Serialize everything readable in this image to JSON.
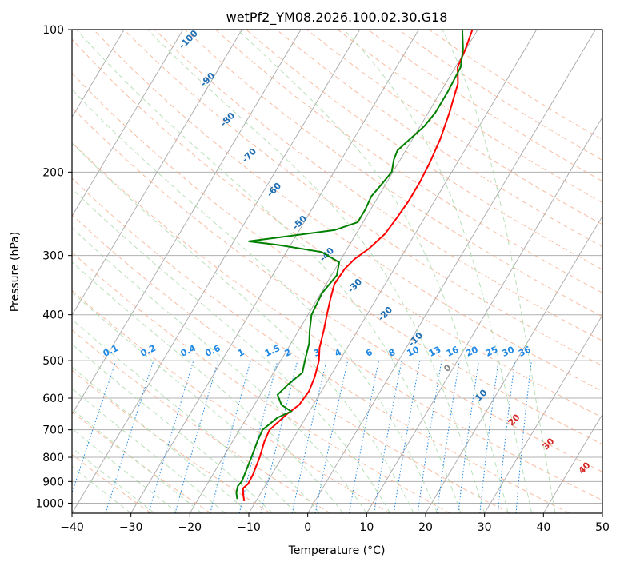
{
  "chart_data": {
    "type": "line",
    "subtype": "skew-T log-p diagram",
    "title": "wetPf2_YM08.2026.100.02.30.G18",
    "xlabel": "Temperature (°C)",
    "ylabel": "Pressure (hPa)",
    "xlim": [
      -40,
      50
    ],
    "ylim": [
      1050,
      100
    ],
    "y_scale": "log",
    "x_ticks": [
      -40,
      -30,
      -20,
      -10,
      0,
      10,
      20,
      30,
      40,
      50
    ],
    "y_ticks": [
      100,
      200,
      300,
      400,
      500,
      600,
      700,
      800,
      900,
      1000
    ],
    "grid": true,
    "background_lines": {
      "isotherms_skewed": {
        "color": "#999999",
        "style": "solid"
      },
      "dry_adiabats": {
        "color": "#f4a582",
        "style": "dashed",
        "labels": [
          "-100",
          "-90",
          "-80",
          "-70",
          "-60",
          "-50",
          "-40",
          "-30",
          "-20",
          "-10",
          "0",
          "10",
          "20",
          "30",
          "40"
        ]
      },
      "moist_adiabats": {
        "color": "#a6d8a6",
        "style": "dashed"
      },
      "mixing_ratio": {
        "color": "#1e88e5",
        "style": "dotted",
        "labels": [
          "0.1",
          "0.2",
          "0.4",
          "0.6",
          "1",
          "1.5",
          "2",
          "3",
          "4",
          "6",
          "8",
          "10",
          "13",
          "16",
          "20",
          "25",
          "30",
          "36"
        ]
      }
    },
    "series": [
      {
        "color": "#ff0000",
        "points": [
          {
            "p": 990,
            "t": -12.0
          },
          {
            "p": 960,
            "t": -12.8
          },
          {
            "p": 930,
            "t": -13.5
          },
          {
            "p": 910,
            "t": -13.1
          },
          {
            "p": 870,
            "t": -13.2
          },
          {
            "p": 800,
            "t": -13.8
          },
          {
            "p": 740,
            "t": -14.6
          },
          {
            "p": 700,
            "t": -14.9
          },
          {
            "p": 650,
            "t": -13.6
          },
          {
            "p": 620,
            "t": -12.4
          },
          {
            "p": 580,
            "t": -12.1
          },
          {
            "p": 540,
            "t": -12.6
          },
          {
            "p": 500,
            "t": -13.5
          },
          {
            "p": 470,
            "t": -14.7
          },
          {
            "p": 430,
            "t": -15.8
          },
          {
            "p": 400,
            "t": -16.8
          },
          {
            "p": 370,
            "t": -17.8
          },
          {
            "p": 345,
            "t": -18.6
          },
          {
            "p": 320,
            "t": -18.4
          },
          {
            "p": 305,
            "t": -17.7
          },
          {
            "p": 290,
            "t": -16.3
          },
          {
            "p": 270,
            "t": -15.1
          },
          {
            "p": 250,
            "t": -14.7
          },
          {
            "p": 230,
            "t": -14.4
          },
          {
            "p": 210,
            "t": -14.4
          },
          {
            "p": 190,
            "t": -14.7
          },
          {
            "p": 170,
            "t": -15.3
          },
          {
            "p": 150,
            "t": -16.4
          },
          {
            "p": 130,
            "t": -17.9
          },
          {
            "p": 120,
            "t": -19.6
          },
          {
            "p": 110,
            "t": -20.1
          },
          {
            "p": 100,
            "t": -20.9
          }
        ]
      },
      {
        "color": "#008000",
        "points": [
          {
            "p": 980,
            "t": -13.4
          },
          {
            "p": 950,
            "t": -14.2
          },
          {
            "p": 920,
            "t": -14.6
          },
          {
            "p": 900,
            "t": -14.4
          },
          {
            "p": 860,
            "t": -14.7
          },
          {
            "p": 800,
            "t": -15.2
          },
          {
            "p": 740,
            "t": -15.8
          },
          {
            "p": 700,
            "t": -16.1
          },
          {
            "p": 660,
            "t": -14.8
          },
          {
            "p": 640,
            "t": -13.1
          },
          {
            "p": 620,
            "t": -15.4
          },
          {
            "p": 590,
            "t": -17.1
          },
          {
            "p": 560,
            "t": -16.3
          },
          {
            "p": 530,
            "t": -15.1
          },
          {
            "p": 500,
            "t": -15.9
          },
          {
            "p": 460,
            "t": -16.9
          },
          {
            "p": 430,
            "t": -18.2
          },
          {
            "p": 400,
            "t": -19.4
          },
          {
            "p": 360,
            "t": -19.8
          },
          {
            "p": 330,
            "t": -19.1
          },
          {
            "p": 310,
            "t": -20.0
          },
          {
            "p": 295,
            "t": -24.0
          },
          {
            "p": 285,
            "t": -32.0
          },
          {
            "p": 280,
            "t": -37.5
          },
          {
            "p": 275,
            "t": -33.0
          },
          {
            "p": 265,
            "t": -24.0
          },
          {
            "p": 255,
            "t": -20.9
          },
          {
            "p": 240,
            "t": -20.9
          },
          {
            "p": 225,
            "t": -21.2
          },
          {
            "p": 215,
            "t": -20.8
          },
          {
            "p": 200,
            "t": -20.2
          },
          {
            "p": 188,
            "t": -21.1
          },
          {
            "p": 180,
            "t": -21.4
          },
          {
            "p": 170,
            "t": -20.4
          },
          {
            "p": 160,
            "t": -19.3
          },
          {
            "p": 150,
            "t": -18.8
          },
          {
            "p": 135,
            "t": -18.8
          },
          {
            "p": 120,
            "t": -19.1
          },
          {
            "p": 110,
            "t": -20.5
          },
          {
            "p": 100,
            "t": -22.6
          }
        ]
      }
    ]
  }
}
